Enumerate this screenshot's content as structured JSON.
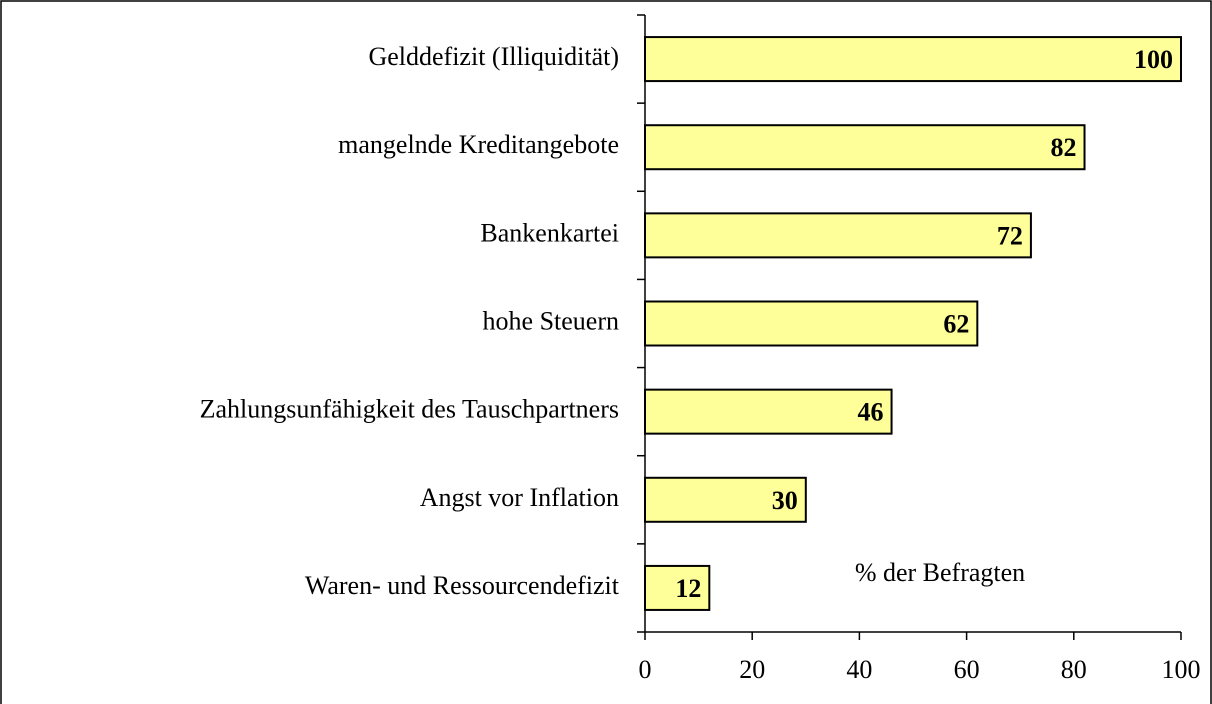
{
  "chart_data": {
    "type": "bar",
    "orientation": "horizontal",
    "categories": [
      "Gelddefizit (Illiquidität)",
      "mangelnde Kreditangebote",
      "Bankenkartei",
      "hohe Steuern",
      "Zahlungsunfähigkeit des Tauschpartners",
      "Angst vor Inflation",
      "Waren- und Ressourcendefizit"
    ],
    "values": [
      100,
      82,
      72,
      62,
      46,
      30,
      12
    ],
    "color": "#ffff99",
    "xlim": [
      0,
      100
    ],
    "xticks": [
      0,
      20,
      40,
      60,
      80,
      100
    ],
    "annotation": "% der Befragten"
  }
}
